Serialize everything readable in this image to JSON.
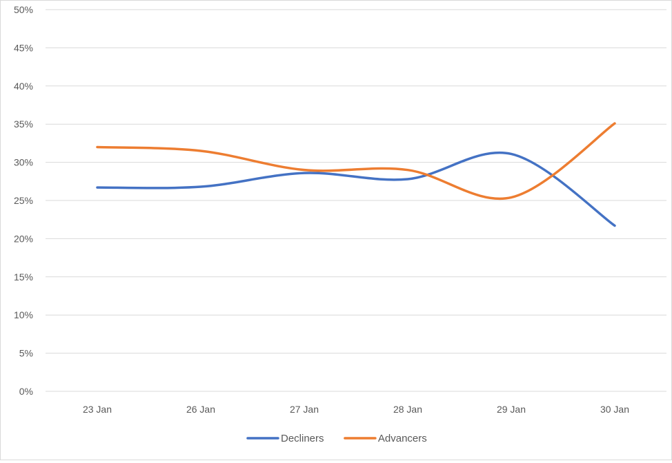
{
  "chart_data": {
    "type": "line",
    "categories": [
      "23 Jan",
      "26 Jan",
      "27 Jan",
      "28 Jan",
      "29 Jan",
      "30 Jan"
    ],
    "series": [
      {
        "name": "Decliners",
        "values": [
          0.267,
          0.268,
          0.286,
          0.278,
          0.311,
          0.217
        ],
        "color": "#4472c4"
      },
      {
        "name": "Advancers",
        "values": [
          0.32,
          0.315,
          0.29,
          0.29,
          0.254,
          0.351
        ],
        "color": "#ed7d31"
      }
    ],
    "y_ticks": [
      "0%",
      "5%",
      "10%",
      "15%",
      "20%",
      "25%",
      "30%",
      "35%",
      "40%",
      "45%",
      "50%"
    ],
    "ylim": [
      0,
      0.5
    ],
    "y_format": "percent",
    "grid": true,
    "smooth": true,
    "legend_position": "bottom",
    "colors": {
      "gridline": "#d9d9d9",
      "axis_text": "#595959"
    }
  }
}
